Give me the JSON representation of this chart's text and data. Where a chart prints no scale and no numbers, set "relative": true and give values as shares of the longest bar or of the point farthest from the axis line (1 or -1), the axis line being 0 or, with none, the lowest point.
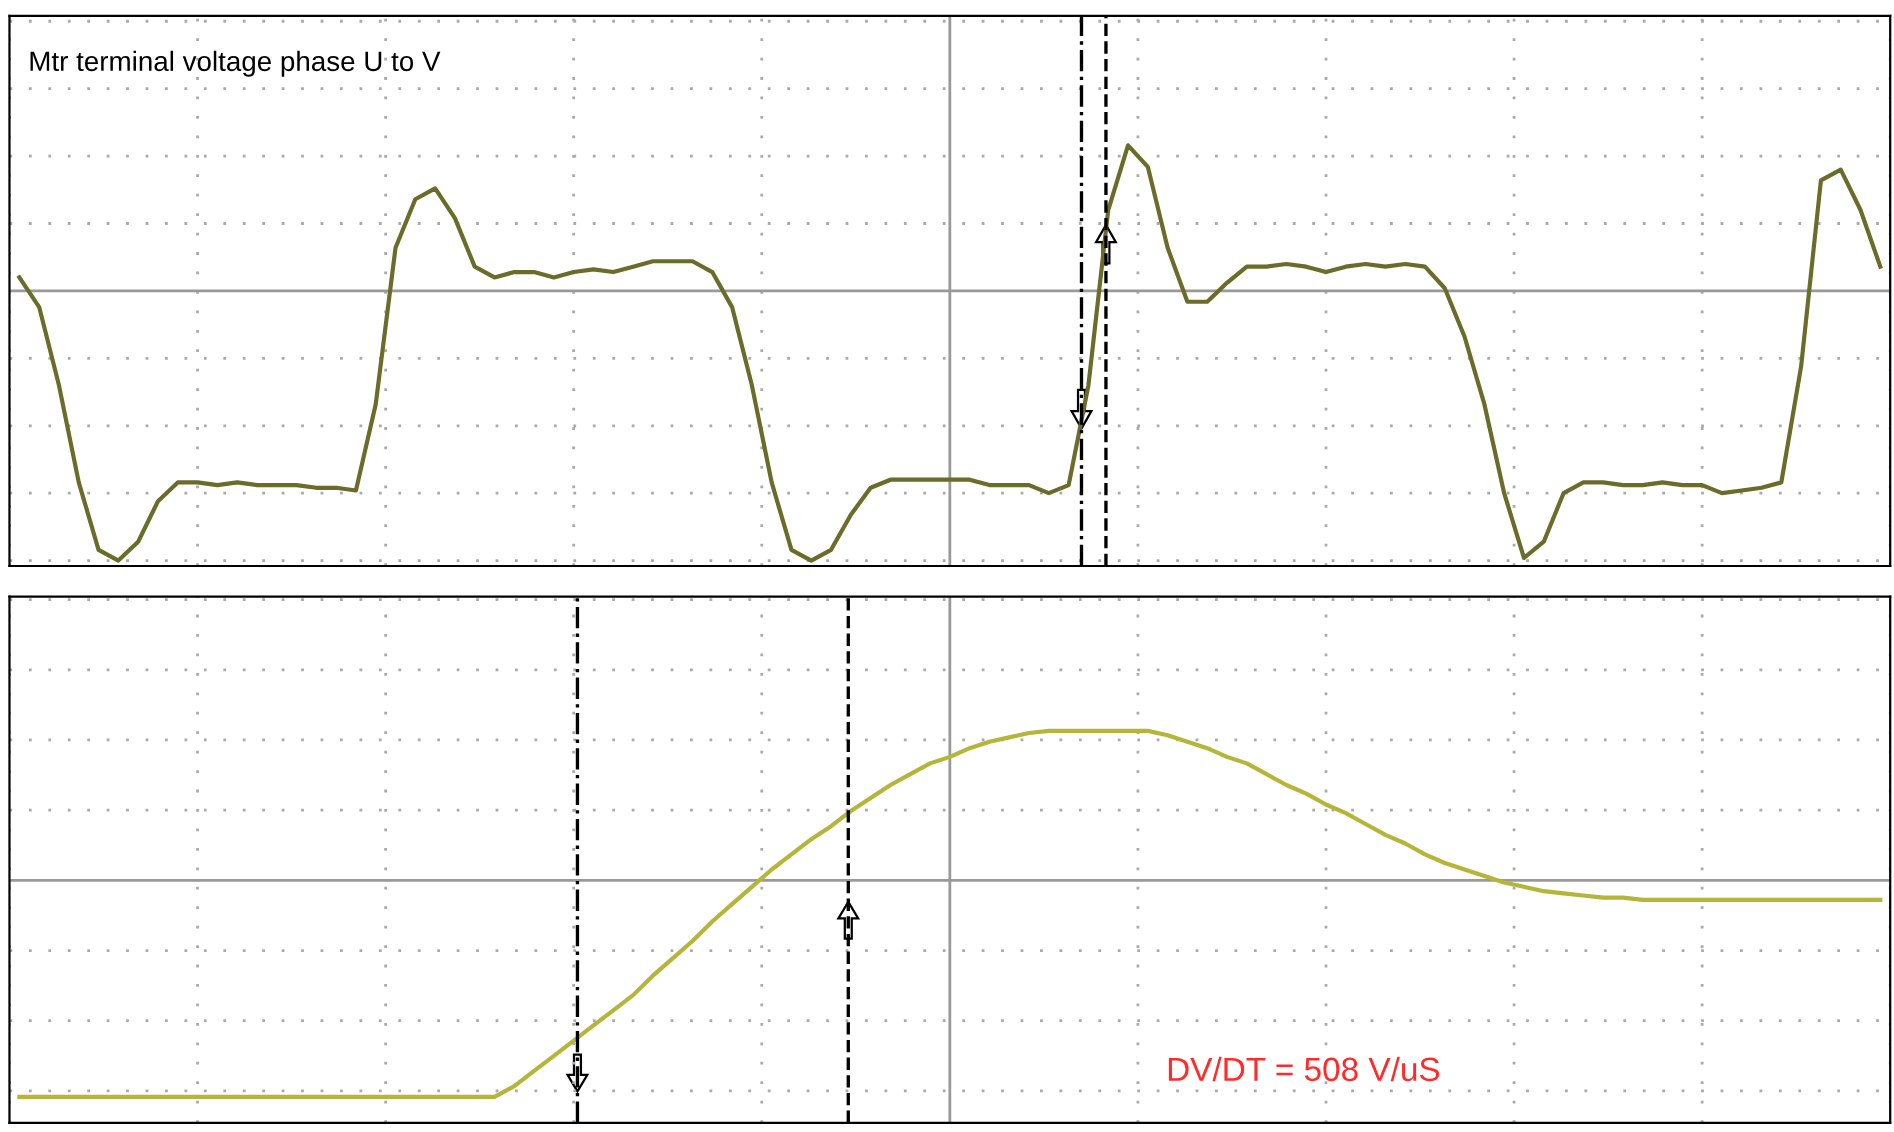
{
  "chart_data": [
    {
      "type": "line",
      "relative": true,
      "grid": true,
      "categories": [
        null,
        null,
        null,
        null,
        null,
        null,
        null,
        null,
        null,
        null,
        null,
        null,
        null,
        null,
        null,
        null,
        null,
        null,
        null,
        null,
        null,
        null,
        null,
        null,
        null,
        null,
        null,
        null,
        null,
        null,
        null,
        null,
        null,
        null,
        null,
        null,
        null,
        null,
        null,
        null,
        null,
        null,
        null,
        null,
        null,
        null,
        null,
        null,
        null,
        null,
        null,
        null,
        null,
        null,
        null,
        null,
        null,
        null,
        null,
        null,
        null,
        null,
        null,
        null,
        null,
        null,
        null,
        null,
        null,
        null,
        null,
        null,
        null,
        null,
        null,
        null,
        null,
        null,
        null,
        null,
        null,
        null,
        null,
        null,
        null,
        null,
        null,
        null,
        null,
        null,
        null,
        null,
        null,
        null,
        null
      ],
      "series": [
        {
          "color": "#6b6b2a",
          "values": [
            0.05,
            -0.06,
            -0.35,
            -0.71,
            -0.96,
            -1.0,
            -0.93,
            -0.78,
            -0.71,
            -0.71,
            -0.72,
            -0.71,
            -0.72,
            -0.72,
            -0.72,
            -0.73,
            -0.73,
            -0.74,
            -0.42,
            0.16,
            0.34,
            0.38,
            0.27,
            0.09,
            0.05,
            0.07,
            0.07,
            0.05,
            0.07,
            0.08,
            0.07,
            0.09,
            0.11,
            0.11,
            0.11,
            0.07,
            -0.06,
            -0.35,
            -0.71,
            -0.96,
            -1.0,
            -0.96,
            -0.83,
            -0.73,
            -0.7,
            -0.7,
            -0.7,
            -0.7,
            -0.7,
            -0.72,
            -0.72,
            -0.72,
            -0.75,
            -0.72,
            -0.35,
            0.3,
            0.54,
            0.46,
            0.16,
            -0.04,
            -0.04,
            0.03,
            0.09,
            0.09,
            0.1,
            0.09,
            0.07,
            0.09,
            0.1,
            0.09,
            0.1,
            0.09,
            0.01,
            -0.17,
            -0.42,
            -0.75,
            -0.99,
            -0.93,
            -0.75,
            -0.71,
            -0.71,
            -0.72,
            -0.72,
            -0.71,
            -0.72,
            -0.72,
            -0.75,
            -0.74,
            -0.73,
            -0.71,
            -0.28,
            0.41,
            0.45,
            0.3,
            0.09
          ]
        }
      ],
      "annotations": [
        "Mtr terminal voltage phase U to V"
      ],
      "marker": "none",
      "line_style": "solid"
    },
    {
      "type": "line",
      "relative": true,
      "grid": true,
      "categories": [
        null,
        null,
        null,
        null,
        null,
        null,
        null,
        null,
        null,
        null,
        null,
        null,
        null,
        null,
        null,
        null,
        null,
        null,
        null,
        null,
        null,
        null,
        null,
        null,
        null,
        null,
        null,
        null,
        null,
        null,
        null,
        null,
        null,
        null,
        null,
        null,
        null,
        null,
        null,
        null,
        null,
        null,
        null,
        null,
        null,
        null,
        null,
        null,
        null,
        null,
        null,
        null,
        null,
        null,
        null,
        null,
        null,
        null,
        null,
        null,
        null,
        null,
        null,
        null,
        null,
        null,
        null,
        null,
        null,
        null,
        null,
        null,
        null,
        null,
        null,
        null,
        null,
        null,
        null,
        null,
        null,
        null,
        null,
        null,
        null,
        null,
        null,
        null,
        null,
        null,
        null,
        null,
        null,
        null,
        null
      ],
      "series": [
        {
          "color": "#b5b53a",
          "values": [
            -1.0,
            -1.0,
            -1.0,
            -1.0,
            -1.0,
            -1.0,
            -1.0,
            -1.0,
            -1.0,
            -1.0,
            -1.0,
            -1.0,
            -1.0,
            -1.0,
            -1.0,
            -1.0,
            -1.0,
            -1.0,
            -1.0,
            -1.0,
            -1.0,
            -1.0,
            -1.0,
            -1.0,
            -1.0,
            -0.95,
            -0.88,
            -0.81,
            -0.74,
            -0.67,
            -0.6,
            -0.53,
            -0.44,
            -0.36,
            -0.28,
            -0.19,
            -0.11,
            -0.03,
            0.05,
            0.12,
            0.19,
            0.25,
            0.32,
            0.38,
            0.44,
            0.49,
            0.54,
            0.57,
            0.61,
            0.64,
            0.66,
            0.68,
            0.69,
            0.69,
            0.69,
            0.69,
            0.69,
            0.69,
            0.67,
            0.64,
            0.61,
            0.57,
            0.54,
            0.49,
            0.44,
            0.4,
            0.35,
            0.31,
            0.26,
            0.21,
            0.17,
            0.12,
            0.08,
            0.05,
            0.02,
            -0.01,
            -0.03,
            -0.05,
            -0.06,
            -0.07,
            -0.08,
            -0.08,
            -0.09,
            -0.09,
            -0.09,
            -0.09,
            -0.09,
            -0.09,
            -0.09,
            -0.09,
            -0.09,
            -0.09,
            -0.09,
            -0.09,
            -0.09
          ]
        }
      ],
      "annotations": [
        "DV/DT = 508 V/uS"
      ],
      "marker": "none",
      "line_style": "solid"
    }
  ]
}
